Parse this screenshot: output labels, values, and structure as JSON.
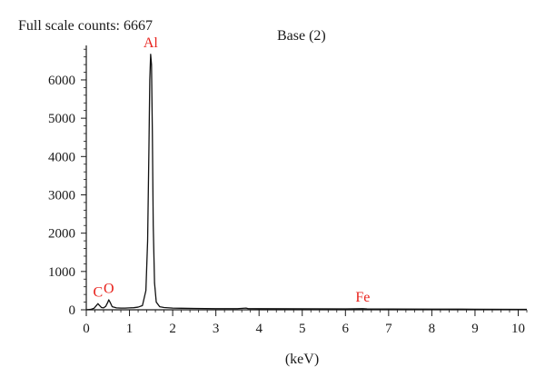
{
  "header": {
    "full_scale": "Full scale counts: 6667",
    "title": "Base (2)"
  },
  "chart_data": {
    "type": "line",
    "xlabel": "(keV)",
    "ylabel": "",
    "xlim": [
      0,
      10.2
    ],
    "ylim": [
      0,
      6900
    ],
    "x_ticks": [
      0,
      1,
      2,
      3,
      4,
      5,
      6,
      7,
      8,
      9,
      10
    ],
    "y_ticks": [
      0,
      1000,
      2000,
      3000,
      4000,
      5000,
      6000
    ],
    "grid": false,
    "full_scale_counts": 6667,
    "peak_labels": [
      {
        "text": "C",
        "x": 0.27,
        "y": 150,
        "color": "#e8221c"
      },
      {
        "text": "O",
        "x": 0.52,
        "y": 250,
        "color": "#e8221c"
      },
      {
        "text": "Al",
        "x": 1.49,
        "y": 6667,
        "color": "#e8221c"
      },
      {
        "text": "Fe",
        "x": 6.4,
        "y": 20,
        "color": "#e8221c"
      }
    ],
    "series": [
      {
        "values": [
          [
            0.0,
            0
          ],
          [
            0.1,
            10
          ],
          [
            0.18,
            40
          ],
          [
            0.24,
            120
          ],
          [
            0.27,
            160
          ],
          [
            0.3,
            120
          ],
          [
            0.35,
            60
          ],
          [
            0.4,
            50
          ],
          [
            0.45,
            90
          ],
          [
            0.5,
            200
          ],
          [
            0.52,
            260
          ],
          [
            0.55,
            200
          ],
          [
            0.6,
            80
          ],
          [
            0.7,
            50
          ],
          [
            0.8,
            45
          ],
          [
            0.9,
            45
          ],
          [
            1.0,
            50
          ],
          [
            1.1,
            55
          ],
          [
            1.2,
            70
          ],
          [
            1.3,
            110
          ],
          [
            1.38,
            500
          ],
          [
            1.42,
            1800
          ],
          [
            1.45,
            4200
          ],
          [
            1.47,
            6000
          ],
          [
            1.49,
            6667
          ],
          [
            1.51,
            6400
          ],
          [
            1.53,
            4600
          ],
          [
            1.55,
            2200
          ],
          [
            1.58,
            700
          ],
          [
            1.62,
            200
          ],
          [
            1.7,
            80
          ],
          [
            1.8,
            60
          ],
          [
            2.0,
            45
          ],
          [
            2.2,
            40
          ],
          [
            2.5,
            35
          ],
          [
            3.0,
            30
          ],
          [
            3.5,
            30
          ],
          [
            3.7,
            45
          ],
          [
            3.75,
            30
          ],
          [
            4.0,
            28
          ],
          [
            5.0,
            25
          ],
          [
            6.0,
            22
          ],
          [
            6.4,
            30
          ],
          [
            6.5,
            22
          ],
          [
            7.0,
            20
          ],
          [
            8.0,
            18
          ],
          [
            9.0,
            15
          ],
          [
            10.0,
            12
          ],
          [
            10.2,
            10
          ]
        ]
      }
    ]
  }
}
